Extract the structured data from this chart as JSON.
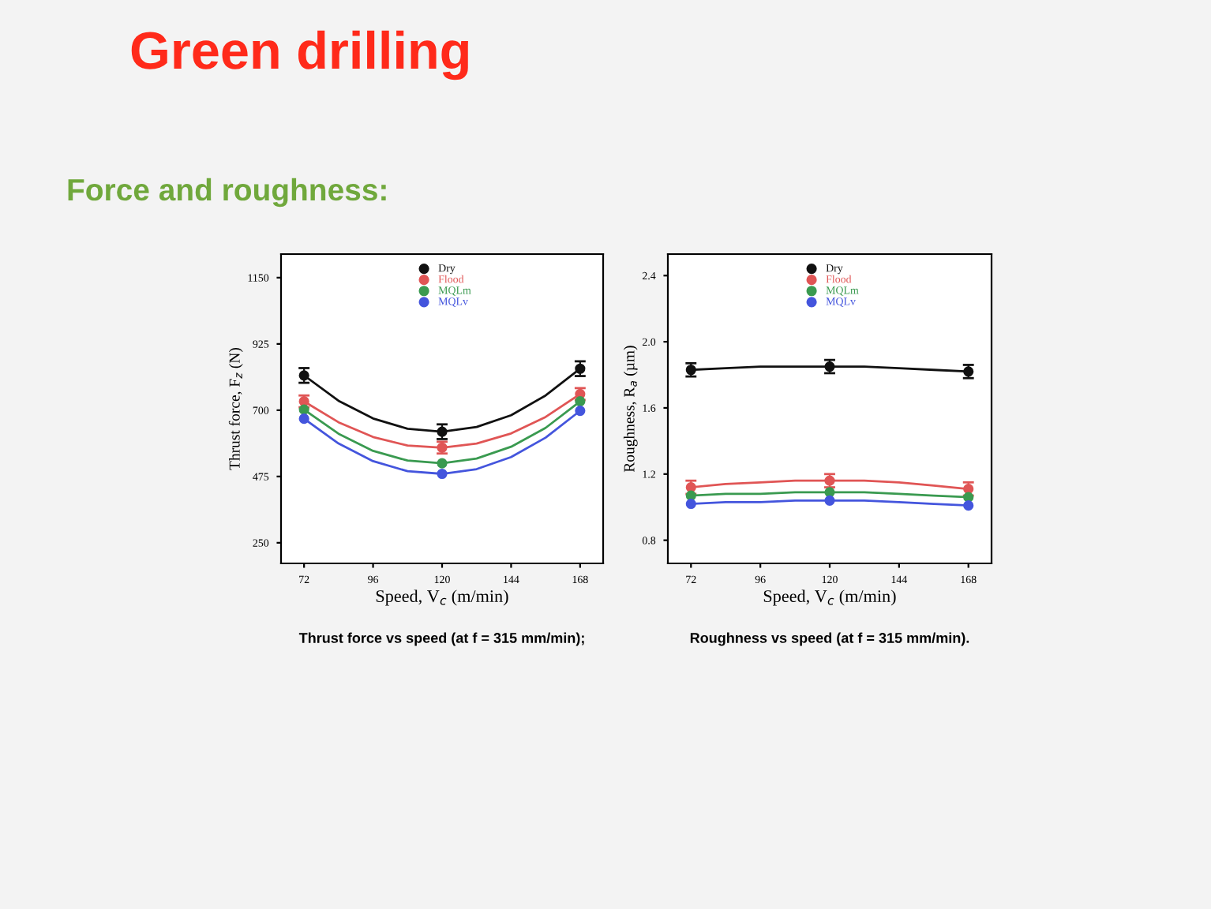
{
  "chart_data": [
    {
      "type": "scatter",
      "title": "Green drilling",
      "subtitle": "Force and roughness:",
      "xlabel": "Speed, V$_{c}$ (m/min)",
      "ylabel": "Thrust force, F$_{z}$ (N)",
      "x": [
        72,
        120,
        168
      ],
      "xlim": [
        64,
        176
      ],
      "xticks": [
        72,
        96,
        120,
        144,
        168
      ],
      "ylim": [
        180,
        1230
      ],
      "yticks": [
        250,
        475,
        700,
        925,
        1150
      ],
      "marker": "none",
      "legend": "top",
      "grid": false,
      "series": [
        {
          "name": "Dry",
          "color": "#111111",
          "marker": "circle",
          "values": [
            818,
            627,
            841
          ],
          "errors": [
            25,
            25,
            25
          ]
        },
        {
          "name": "Flood",
          "color": "#e05555",
          "marker": "circle",
          "values": [
            730,
            573,
            755
          ],
          "errors": [
            20,
            20,
            20
          ]
        },
        {
          "name": "MQLm",
          "color": "#3a9a50",
          "marker": "circle",
          "values": [
            702,
            520,
            730
          ]
        },
        {
          "name": "MQLv",
          "color": "#4455dd",
          "marker": "circle",
          "values": [
            671,
            484,
            698
          ]
        },
        {
          "type": "line",
          "color": "#111111",
          "x": [
            72,
            84,
            96,
            108,
            120,
            132,
            144,
            156,
            168
          ],
          "values": [
            818,
            732,
            672,
            637,
            627,
            643,
            683,
            750,
            841
          ]
        },
        {
          "type": "line",
          "color": "#e05555",
          "x": [
            72,
            84,
            96,
            108,
            120,
            132,
            144,
            156,
            168
          ],
          "values": [
            730,
            659,
            609,
            580,
            573,
            587,
            621,
            677,
            755
          ]
        },
        {
          "type": "line",
          "color": "#3a9a50",
          "x": [
            72,
            84,
            96,
            108,
            120,
            132,
            144,
            156,
            168
          ],
          "values": [
            702,
            620,
            562,
            529,
            520,
            536,
            576,
            640,
            730
          ]
        },
        {
          "type": "line",
          "color": "#4455dd",
          "x": [
            72,
            84,
            96,
            108,
            120,
            132,
            144,
            156,
            168
          ],
          "values": [
            671,
            587,
            527,
            493,
            484,
            500,
            541,
            607,
            698
          ]
        }
      ],
      "annotations": [
        "Thrust force vs speed (at f = 315 mm/min);"
      ]
    },
    {
      "type": "scatter",
      "xlabel": "Speed, V$_{c}$ (m/min)",
      "ylabel": "Roughness, R$_{a}$ (µm)",
      "x": [
        72,
        120,
        168
      ],
      "xlim": [
        64,
        176
      ],
      "xticks": [
        72,
        96,
        120,
        144,
        168
      ],
      "ylim": [
        0.66,
        2.53
      ],
      "yticks": [
        0.8,
        1.2,
        1.6,
        {
          "value": 2,
          "label": "2.0"
        },
        2.4
      ],
      "marker": "none",
      "legend": "top",
      "grid": false,
      "series": [
        {
          "name": "Dry",
          "color": "#111111",
          "marker": "circle",
          "values": [
            1.83,
            1.85,
            1.82
          ],
          "errors": [
            0.04,
            0.04,
            0.04
          ]
        },
        {
          "name": "Flood",
          "color": "#e05555",
          "marker": "circle",
          "values": [
            1.12,
            1.16,
            1.11
          ],
          "errors": [
            0.04,
            0.04,
            0.04
          ]
        },
        {
          "name": "MQLm",
          "color": "#3a9a50",
          "marker": "circle",
          "values": [
            1.07,
            1.09,
            1.06
          ]
        },
        {
          "name": "MQLv",
          "color": "#4455dd",
          "marker": "circle",
          "values": [
            1.02,
            1.04,
            1.01
          ]
        },
        {
          "type": "line",
          "color": "#111111",
          "x": [
            72,
            84,
            96,
            108,
            120,
            132,
            144,
            156,
            168
          ],
          "values": [
            1.83,
            1.84,
            1.85,
            1.85,
            1.85,
            1.85,
            1.84,
            1.83,
            1.82
          ]
        },
        {
          "type": "line",
          "color": "#e05555",
          "x": [
            72,
            84,
            96,
            108,
            120,
            132,
            144,
            156,
            168
          ],
          "values": [
            1.12,
            1.14,
            1.15,
            1.16,
            1.16,
            1.16,
            1.15,
            1.13,
            1.11
          ]
        },
        {
          "type": "line",
          "color": "#3a9a50",
          "x": [
            72,
            84,
            96,
            108,
            120,
            132,
            144,
            156,
            168
          ],
          "values": [
            1.07,
            1.08,
            1.08,
            1.09,
            1.09,
            1.09,
            1.08,
            1.07,
            1.06
          ]
        },
        {
          "type": "line",
          "color": "#4455dd",
          "x": [
            72,
            84,
            96,
            108,
            120,
            132,
            144,
            156,
            168
          ],
          "values": [
            1.02,
            1.03,
            1.03,
            1.04,
            1.04,
            1.04,
            1.03,
            1.02,
            1.01
          ]
        }
      ],
      "annotations": [
        "Roughness vs speed (at f = 315 mm/min)."
      ]
    }
  ]
}
